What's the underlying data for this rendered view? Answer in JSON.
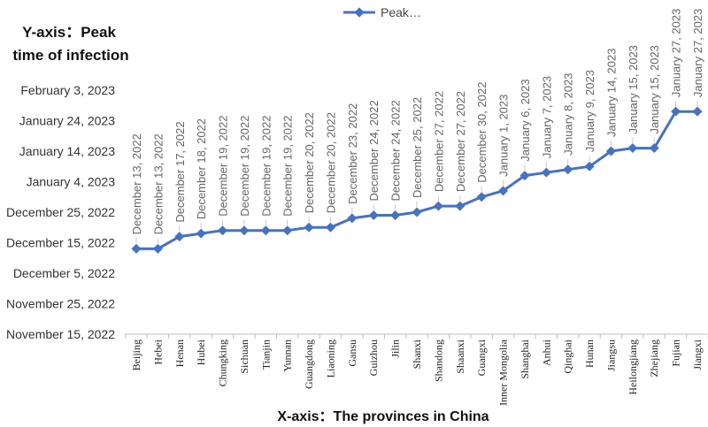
{
  "chart_data": {
    "type": "line",
    "ylabel_lines": [
      "Y-axis：Peak",
      "time of infection"
    ],
    "xlabel": "X-axis：The provinces in China",
    "legend": "Peak…",
    "y_ticks": [
      "February 3, 2023",
      "January 24, 2023",
      "January 14, 2023",
      "January 4, 2023",
      "December 25, 2022",
      "December 15, 2022",
      "December 5, 2022",
      "November 25, 2022",
      "November 15, 2022"
    ],
    "ylim": [
      "2022-11-15",
      "2023-02-03"
    ],
    "categories": [
      "Beijing",
      "Hebei",
      "Henan",
      "Hubei",
      "Chungking",
      "Sichuan",
      "Tianjin",
      "Yunnan",
      "Guangdong",
      "Liaoning",
      "Gansu",
      "Guizhou",
      "Jilin",
      "Shanxi",
      "Shandong",
      "Shaanxi",
      "Guangxi",
      "Inner Mongolia",
      "Shanghai",
      "Anhui",
      "Qinghai",
      "Hunan",
      "Jiangsu",
      "Heilongjiang",
      "Zhejiang",
      "Fujian",
      "Jiangxi"
    ],
    "series": [
      {
        "name": "Peak…",
        "color": "#4472C4",
        "values": [
          "2022-12-13",
          "2022-12-13",
          "2022-12-17",
          "2022-12-18",
          "2022-12-19",
          "2022-12-19",
          "2022-12-19",
          "2022-12-19",
          "2022-12-20",
          "2022-12-20",
          "2022-12-23",
          "2022-12-24",
          "2022-12-24",
          "2022-12-25",
          "2022-12-27",
          "2022-12-27",
          "2022-12-30",
          "2023-01-01",
          "2023-01-06",
          "2023-01-07",
          "2023-01-08",
          "2023-01-09",
          "2023-01-14",
          "2023-01-15",
          "2023-01-15",
          "2023-01-27",
          "2023-01-27"
        ],
        "labels": [
          "December 13, 2022",
          "December 13, 2022",
          "December 17, 2022",
          "December 18, 2022",
          "December 19, 2022",
          "December 19, 2022",
          "December 19, 2022",
          "December 19, 2022",
          "December 20, 2022",
          "December 20, 2022",
          "December 23, 2022",
          "December 24, 2022",
          "December 24, 2022",
          "December 25, 2022",
          "December 27, 2022",
          "December 27, 2022",
          "December 30, 2022",
          "January 1, 2023",
          "January 6, 2023",
          "January 7, 2023",
          "January 8, 2023",
          "January 9, 2023",
          "January 14, 2023",
          "January 15, 2023",
          "January 15, 2023",
          "January 27, 2023",
          "January 27, 2023"
        ]
      }
    ]
  }
}
